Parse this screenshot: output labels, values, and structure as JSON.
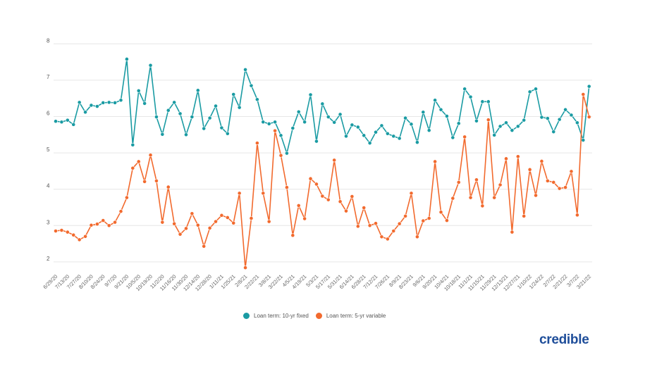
{
  "chart_data": {
    "type": "line",
    "title": "",
    "xlabel": "",
    "ylabel": "",
    "ylim": [
      2,
      8
    ],
    "yticks": [
      2,
      3,
      4,
      5,
      6,
      7,
      8
    ],
    "grid": true,
    "legend_placement": "bottom-center",
    "x_tick_labels": [
      "6/29/20",
      "7/13/20",
      "7/27/20",
      "8/10/20",
      "8/24/20",
      "9/7/20",
      "9/21/20",
      "10/5/20",
      "10/19/20",
      "11/2/20",
      "11/16/20",
      "11/30/20",
      "12/14/20",
      "12/28/20",
      "1/11/21",
      "1/25/21",
      "2/8/21",
      "2/22/21",
      "3/8/21",
      "3/22/21",
      "4/5/21",
      "4/19/21",
      "5/3/21",
      "5/17/21",
      "5/31/21",
      "6/14/21",
      "6/28/21",
      "7/12/21",
      "7/26/21",
      "8/9/21",
      "8/23/21",
      "9/6/21",
      "9/20/21",
      "10/4/21",
      "10/18/21",
      "11/1/21",
      "11/15/21",
      "11/29/21",
      "12/13/21",
      "12/27/21",
      "1/10/22",
      "1/24/22",
      "2/7/22",
      "2/21/22",
      "3/7/22",
      "3/21/22"
    ],
    "x_note_weekly_from": "6/29/20",
    "series": [
      {
        "name": "Loan term: 10-yr fixed",
        "color": "#1a9ba3",
        "values": [
          5.87,
          5.85,
          5.9,
          5.78,
          6.39,
          6.12,
          6.31,
          6.28,
          6.38,
          6.39,
          6.38,
          6.45,
          7.58,
          5.22,
          6.71,
          6.36,
          7.41,
          5.99,
          5.51,
          6.17,
          6.39,
          6.08,
          5.5,
          5.99,
          6.72,
          5.67,
          5.96,
          6.29,
          5.69,
          5.53,
          6.61,
          6.25,
          7.29,
          6.85,
          6.47,
          5.85,
          5.8,
          5.85,
          5.48,
          4.99,
          5.68,
          6.13,
          5.85,
          6.6,
          5.32,
          6.35,
          5.99,
          5.84,
          6.06,
          5.46,
          5.77,
          5.71,
          5.48,
          5.27,
          5.57,
          5.75,
          5.53,
          5.46,
          5.4,
          5.96,
          5.79,
          5.29,
          6.12,
          5.62,
          6.45,
          6.19,
          6.01,
          5.42,
          5.81,
          6.76,
          6.54,
          5.88,
          6.41,
          6.41,
          5.49,
          5.73,
          5.83,
          5.62,
          5.73,
          5.9,
          6.68,
          6.76,
          5.98,
          5.95,
          5.58,
          5.92,
          6.19,
          6.04,
          5.83,
          5.35,
          6.83
        ]
      },
      {
        "name": "Loan term: 5-yr variable",
        "color": "#f26a2e",
        "values": [
          2.85,
          2.87,
          2.82,
          2.74,
          2.61,
          2.7,
          3.01,
          3.04,
          3.14,
          3.0,
          3.09,
          3.39,
          3.77,
          4.58,
          4.76,
          4.21,
          4.94,
          4.23,
          3.09,
          4.06,
          3.05,
          2.76,
          2.92,
          3.33,
          3.01,
          2.43,
          2.93,
          3.11,
          3.28,
          3.22,
          3.07,
          3.89,
          1.84,
          3.2,
          5.27,
          3.89,
          3.11,
          5.61,
          4.93,
          4.05,
          2.73,
          3.55,
          3.19,
          4.29,
          4.14,
          3.81,
          3.71,
          4.8,
          3.66,
          3.4,
          3.8,
          2.98,
          3.49,
          3.0,
          3.06,
          2.69,
          2.63,
          2.85,
          3.05,
          3.26,
          3.89,
          2.69,
          3.13,
          3.2,
          4.76,
          3.37,
          3.14,
          3.75,
          4.19,
          5.44,
          3.77,
          4.26,
          3.54,
          5.91,
          3.77,
          4.12,
          4.84,
          2.82,
          4.9,
          3.26,
          4.54,
          3.83,
          4.77,
          4.23,
          4.19,
          4.02,
          4.05,
          4.49,
          3.29,
          6.61,
          5.99
        ]
      }
    ]
  },
  "logo_text": "credible"
}
